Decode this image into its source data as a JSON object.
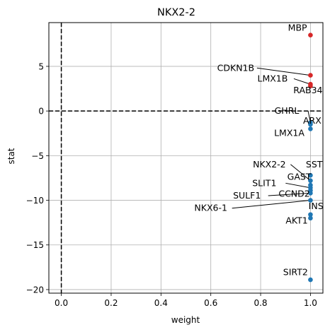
{
  "chart_data": {
    "type": "scatter",
    "title": "NKX2-2",
    "xlabel": "weight",
    "ylabel": "stat",
    "xlim": [
      -0.05,
      1.05
    ],
    "ylim": [
      -20.4,
      9.9
    ],
    "xticks": [
      0.0,
      0.2,
      0.4,
      0.6,
      0.8,
      1.0
    ],
    "xtick_labels": [
      "0.0",
      "0.2",
      "0.4",
      "0.6",
      "0.8",
      "1.0"
    ],
    "yticks": [
      5,
      0,
      -5,
      -10,
      -15,
      -20
    ],
    "ytick_labels": [
      "5",
      "0",
      "−5",
      "−10",
      "−15",
      "−20"
    ],
    "grid": true,
    "reference_lines": [
      {
        "orientation": "horizontal",
        "value": 0,
        "style": "dashed"
      },
      {
        "orientation": "vertical",
        "value": 0,
        "style": "dashed"
      }
    ],
    "colors": {
      "positive": "#d62728",
      "negative": "#1f77b4"
    },
    "points": [
      {
        "label": "MBP",
        "x": 1.0,
        "y": 8.5,
        "sign": "positive",
        "tx": 0.948,
        "ty": 9.0,
        "line": false
      },
      {
        "label": "CDKN1B",
        "x": 1.0,
        "y": 4.0,
        "sign": "positive",
        "tx": 0.7,
        "ty": 4.5,
        "line": true
      },
      {
        "label": "LMX1B",
        "x": 1.0,
        "y": 3.0,
        "sign": "positive",
        "tx": 0.848,
        "ty": 3.3,
        "line": true
      },
      {
        "label": "RAB34",
        "x": 1.0,
        "y": 2.8,
        "sign": "positive",
        "tx": 0.99,
        "ty": 2.0,
        "line": false
      },
      {
        "label": "GHRL",
        "x": 1.0,
        "y": -1.3,
        "sign": "negative",
        "tx": 0.905,
        "ty": -0.3,
        "line": true
      },
      {
        "label": "ARX",
        "x": 1.0,
        "y": -1.5,
        "sign": "negative",
        "tx": 1.007,
        "ty": -1.4,
        "line": false
      },
      {
        "label": "LMX1A",
        "x": 1.0,
        "y": -2.0,
        "sign": "negative",
        "tx": 0.915,
        "ty": -2.8,
        "line": false
      },
      {
        "label": "NKX2-2",
        "x": 1.0,
        "y": -7.8,
        "sign": "negative",
        "tx": 0.835,
        "ty": -6.3,
        "line": true
      },
      {
        "label": "SST",
        "x": 1.0,
        "y": -7.2,
        "sign": "negative",
        "tx": 1.015,
        "ty": -6.3,
        "line": false
      },
      {
        "label": "GAST",
        "x": 1.0,
        "y": -8.3,
        "sign": "negative",
        "tx": 0.955,
        "ty": -7.7,
        "line": false
      },
      {
        "label": "SLIT1",
        "x": 1.0,
        "y": -8.6,
        "sign": "negative",
        "tx": 0.815,
        "ty": -8.4,
        "line": true
      },
      {
        "label": "CCND2",
        "x": 1.0,
        "y": -8.9,
        "sign": "negative",
        "tx": 0.935,
        "ty": -9.6,
        "line": false
      },
      {
        "label": "SULF1",
        "x": 1.0,
        "y": -9.2,
        "sign": "negative",
        "tx": 0.745,
        "ty": -9.8,
        "line": true
      },
      {
        "label": "NKX6-1",
        "x": 1.0,
        "y": -10.0,
        "sign": "negative",
        "tx": 0.6,
        "ty": -11.2,
        "line": true
      },
      {
        "label": "INS",
        "x": 1.0,
        "y": -11.6,
        "sign": "negative",
        "tx": 1.022,
        "ty": -11.0,
        "line": false
      },
      {
        "label": "AKT1",
        "x": 1.0,
        "y": -12.0,
        "sign": "negative",
        "tx": 0.945,
        "ty": -12.6,
        "line": false
      },
      {
        "label": "SIRT2",
        "x": 1.0,
        "y": -18.9,
        "sign": "negative",
        "tx": 0.94,
        "ty": -18.4,
        "line": false
      }
    ]
  }
}
